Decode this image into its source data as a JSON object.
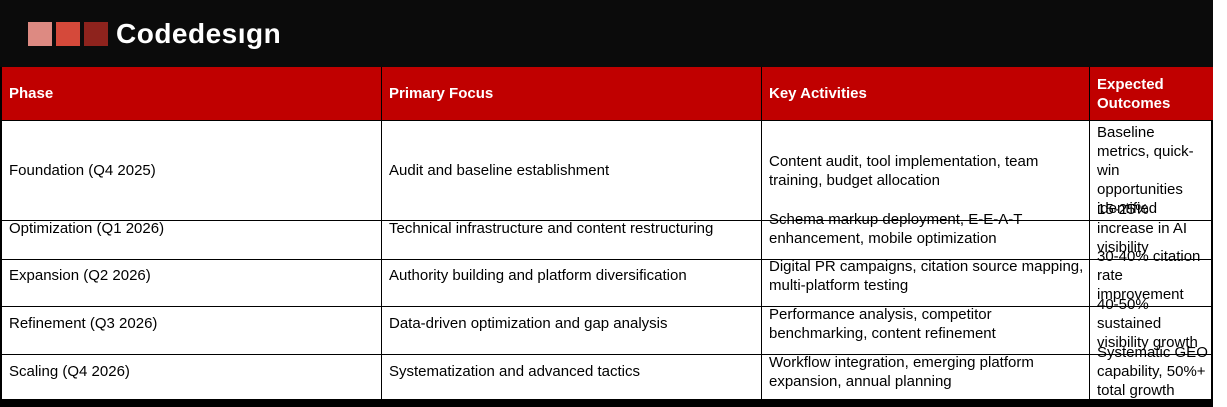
{
  "logo": {
    "brand_before_i": "Codedes",
    "brand_i": "ı",
    "brand_after_i": "gn",
    "full_name": "Codedesign",
    "square_colors": [
      "#dd8a82",
      "#d5493a",
      "#8e231d"
    ],
    "i_dot_color": "#b5281e"
  },
  "colors": {
    "banner_bg": "#0b0b0b",
    "header_bg": "#c00000",
    "header_text": "#ffffff",
    "body_text": "#000000",
    "border": "#000000"
  },
  "table": {
    "columns": [
      "Phase",
      "Primary Focus",
      "Key Activities",
      "Expected Outcomes"
    ],
    "rows": [
      {
        "phase": "Foundation (Q4 2025)",
        "primary_focus": "Audit and baseline establishment",
        "key_activities": "Content audit, tool implementation, team training, budget allocation",
        "expected_outcomes": "Baseline metrics, quick-win opportunities identified"
      },
      {
        "phase": "Optimization (Q1 2026)",
        "primary_focus": "Technical infrastructure and content restructuring",
        "key_activities": "Schema markup deployment, E-E-A-T enhancement, mobile optimization",
        "expected_outcomes": "15-25% increase in AI visibility"
      },
      {
        "phase": "Expansion (Q2 2026)",
        "primary_focus": "Authority building and platform diversification",
        "key_activities": "Digital PR campaigns, citation source mapping, multi-platform testing",
        "expected_outcomes": "30-40% citation rate improvement"
      },
      {
        "phase": "Refinement (Q3 2026)",
        "primary_focus": "Data-driven optimization and gap analysis",
        "key_activities": "Performance analysis, competitor benchmarking, content refinement",
        "expected_outcomes": "40-50% sustained visibility growth"
      },
      {
        "phase": "Scaling (Q4 2026)",
        "primary_focus": "Systematization and advanced tactics",
        "key_activities": "Workflow integration, emerging platform expansion, annual planning",
        "expected_outcomes": "Systematic GEO capability, 50%+ total growth"
      }
    ]
  }
}
